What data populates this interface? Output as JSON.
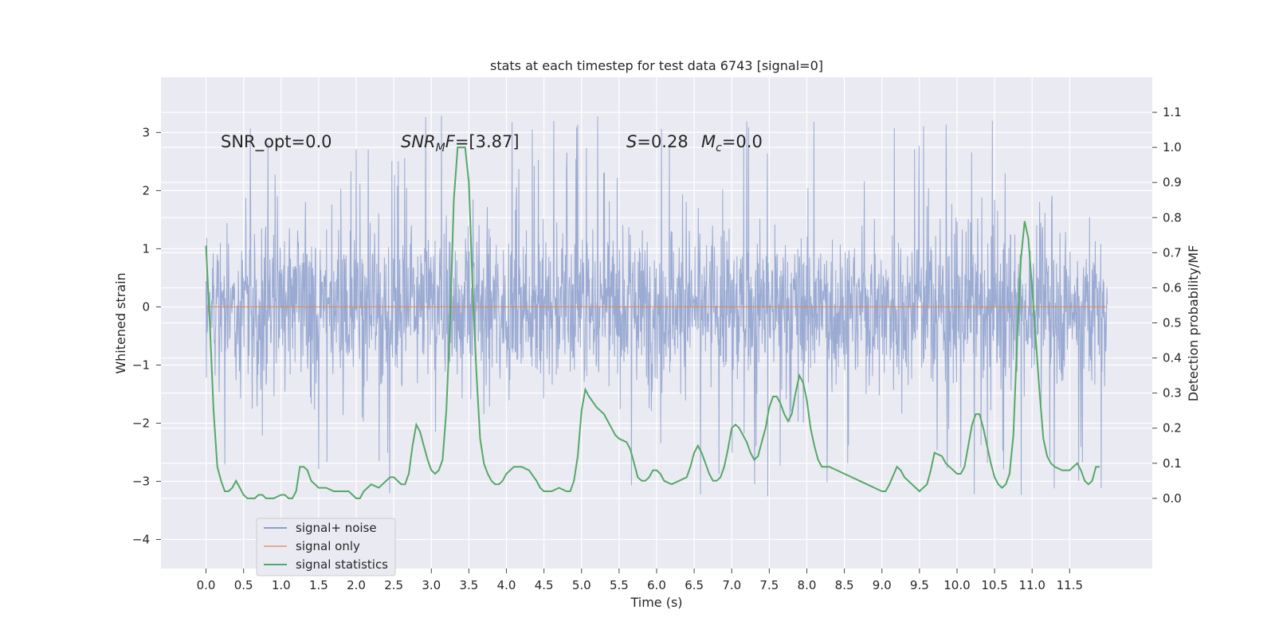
{
  "chart_data": {
    "type": "line",
    "title": "stats at each timestep for test data 6743 [signal=0]",
    "xlabel": "Time (s)",
    "ylabel": "Whitened strain",
    "ylabel_right": "Detection probability/MF",
    "xlim": [
      -0.6,
      12.6
    ],
    "ylim": [
      -4.5,
      3.95
    ],
    "ylim_right": [
      -0.2,
      1.2
    ],
    "xticks": [
      "0.0",
      "0.5",
      "1.0",
      "1.5",
      "2.0",
      "2.5",
      "3.0",
      "3.5",
      "4.0",
      "4.5",
      "5.0",
      "5.5",
      "6.0",
      "6.5",
      "7.0",
      "7.5",
      "8.0",
      "8.5",
      "9.0",
      "9.5",
      "10.0",
      "10.5",
      "11.0",
      "11.5"
    ],
    "yticks_left": [
      "3",
      "2",
      "1",
      "0",
      "−1",
      "−2",
      "−3",
      "−4"
    ],
    "yticks_right": [
      "1.1",
      "1.0",
      "0.9",
      "0.8",
      "0.7",
      "0.6",
      "0.5",
      "0.4",
      "0.3",
      "0.2",
      "0.1",
      "0.0"
    ],
    "grid": true,
    "background": "#eaeaf2",
    "annotations": {
      "snr_opt": "SNR_opt=0.0",
      "snr_mf": "=[3.87]",
      "s": "=0.28",
      "mc": "=0.0"
    },
    "legend": {
      "position": "lower-left",
      "entries": [
        "signal+ noise",
        "signal only",
        "signal statistics"
      ]
    },
    "series": [
      {
        "name": "signal+ noise",
        "axis": "left",
        "color": "#8c9fcd",
        "style": "noise band",
        "x_range": [
          0.0,
          12.0
        ],
        "band_envelope_upper": 1.6,
        "band_envelope_lower": -1.2,
        "spike_max": 3.6,
        "spike_min": -4.1
      },
      {
        "name": "signal only",
        "axis": "left",
        "color": "#dd8452",
        "x_range": [
          0.0,
          12.0
        ],
        "values": 0
      },
      {
        "name": "signal statistics",
        "axis": "right",
        "color": "#55a868",
        "points": [
          [
            0.0,
            0.72
          ],
          [
            0.05,
            0.5
          ],
          [
            0.1,
            0.25
          ],
          [
            0.15,
            0.09
          ],
          [
            0.2,
            0.05
          ],
          [
            0.25,
            0.02
          ],
          [
            0.3,
            0.02
          ],
          [
            0.35,
            0.03
          ],
          [
            0.4,
            0.05
          ],
          [
            0.45,
            0.03
          ],
          [
            0.5,
            0.01
          ],
          [
            0.55,
            0.0
          ],
          [
            0.6,
            0.0
          ],
          [
            0.65,
            0.0
          ],
          [
            0.7,
            0.01
          ],
          [
            0.75,
            0.01
          ],
          [
            0.8,
            0.0
          ],
          [
            0.9,
            0.0
          ],
          [
            1.0,
            0.01
          ],
          [
            1.05,
            0.01
          ],
          [
            1.1,
            0.0
          ],
          [
            1.15,
            0.0
          ],
          [
            1.2,
            0.02
          ],
          [
            1.25,
            0.09
          ],
          [
            1.3,
            0.09
          ],
          [
            1.35,
            0.08
          ],
          [
            1.4,
            0.05
          ],
          [
            1.5,
            0.03
          ],
          [
            1.6,
            0.03
          ],
          [
            1.7,
            0.02
          ],
          [
            1.8,
            0.02
          ],
          [
            1.9,
            0.02
          ],
          [
            2.0,
            0.0
          ],
          [
            2.05,
            0.0
          ],
          [
            2.1,
            0.02
          ],
          [
            2.2,
            0.04
          ],
          [
            2.3,
            0.03
          ],
          [
            2.4,
            0.05
          ],
          [
            2.45,
            0.06
          ],
          [
            2.5,
            0.06
          ],
          [
            2.6,
            0.04
          ],
          [
            2.65,
            0.04
          ],
          [
            2.7,
            0.07
          ],
          [
            2.75,
            0.15
          ],
          [
            2.8,
            0.21
          ],
          [
            2.85,
            0.19
          ],
          [
            2.9,
            0.15
          ],
          [
            2.95,
            0.11
          ],
          [
            3.0,
            0.08
          ],
          [
            3.05,
            0.07
          ],
          [
            3.1,
            0.08
          ],
          [
            3.15,
            0.11
          ],
          [
            3.2,
            0.25
          ],
          [
            3.25,
            0.5
          ],
          [
            3.3,
            0.85
          ],
          [
            3.35,
            1.0
          ],
          [
            3.45,
            1.0
          ],
          [
            3.5,
            0.9
          ],
          [
            3.55,
            0.6
          ],
          [
            3.6,
            0.36
          ],
          [
            3.65,
            0.17
          ],
          [
            3.7,
            0.1
          ],
          [
            3.75,
            0.07
          ],
          [
            3.8,
            0.05
          ],
          [
            3.85,
            0.04
          ],
          [
            3.9,
            0.04
          ],
          [
            3.95,
            0.05
          ],
          [
            4.0,
            0.07
          ],
          [
            4.05,
            0.08
          ],
          [
            4.1,
            0.09
          ],
          [
            4.2,
            0.09
          ],
          [
            4.3,
            0.08
          ],
          [
            4.4,
            0.05
          ],
          [
            4.45,
            0.03
          ],
          [
            4.5,
            0.02
          ],
          [
            4.6,
            0.02
          ],
          [
            4.7,
            0.03
          ],
          [
            4.8,
            0.02
          ],
          [
            4.85,
            0.02
          ],
          [
            4.9,
            0.05
          ],
          [
            4.95,
            0.12
          ],
          [
            5.0,
            0.25
          ],
          [
            5.05,
            0.31
          ],
          [
            5.1,
            0.29
          ],
          [
            5.2,
            0.26
          ],
          [
            5.3,
            0.24
          ],
          [
            5.35,
            0.22
          ],
          [
            5.4,
            0.2
          ],
          [
            5.45,
            0.18
          ],
          [
            5.5,
            0.17
          ],
          [
            5.6,
            0.16
          ],
          [
            5.65,
            0.14
          ],
          [
            5.7,
            0.1
          ],
          [
            5.75,
            0.06
          ],
          [
            5.8,
            0.05
          ],
          [
            5.85,
            0.05
          ],
          [
            5.9,
            0.06
          ],
          [
            5.95,
            0.08
          ],
          [
            6.0,
            0.08
          ],
          [
            6.05,
            0.07
          ],
          [
            6.1,
            0.05
          ],
          [
            6.2,
            0.04
          ],
          [
            6.3,
            0.05
          ],
          [
            6.4,
            0.06
          ],
          [
            6.45,
            0.09
          ],
          [
            6.5,
            0.13
          ],
          [
            6.55,
            0.15
          ],
          [
            6.6,
            0.13
          ],
          [
            6.65,
            0.1
          ],
          [
            6.7,
            0.07
          ],
          [
            6.75,
            0.05
          ],
          [
            6.8,
            0.05
          ],
          [
            6.85,
            0.06
          ],
          [
            6.9,
            0.09
          ],
          [
            6.95,
            0.14
          ],
          [
            7.0,
            0.2
          ],
          [
            7.05,
            0.21
          ],
          [
            7.1,
            0.2
          ],
          [
            7.2,
            0.16
          ],
          [
            7.25,
            0.13
          ],
          [
            7.3,
            0.11
          ],
          [
            7.35,
            0.12
          ],
          [
            7.4,
            0.16
          ],
          [
            7.45,
            0.2
          ],
          [
            7.5,
            0.26
          ],
          [
            7.55,
            0.29
          ],
          [
            7.6,
            0.29
          ],
          [
            7.65,
            0.27
          ],
          [
            7.7,
            0.24
          ],
          [
            7.75,
            0.22
          ],
          [
            7.8,
            0.24
          ],
          [
            7.85,
            0.3
          ],
          [
            7.9,
            0.35
          ],
          [
            7.95,
            0.33
          ],
          [
            8.0,
            0.28
          ],
          [
            8.05,
            0.2
          ],
          [
            8.1,
            0.15
          ],
          [
            8.15,
            0.11
          ],
          [
            8.2,
            0.09
          ],
          [
            8.3,
            0.09
          ],
          [
            8.4,
            0.08
          ],
          [
            8.5,
            0.07
          ],
          [
            8.6,
            0.06
          ],
          [
            8.7,
            0.05
          ],
          [
            8.8,
            0.04
          ],
          [
            8.9,
            0.03
          ],
          [
            9.0,
            0.02
          ],
          [
            9.05,
            0.02
          ],
          [
            9.1,
            0.04
          ],
          [
            9.2,
            0.09
          ],
          [
            9.25,
            0.08
          ],
          [
            9.3,
            0.06
          ],
          [
            9.4,
            0.04
          ],
          [
            9.45,
            0.03
          ],
          [
            9.5,
            0.02
          ],
          [
            9.6,
            0.04
          ],
          [
            9.65,
            0.08
          ],
          [
            9.7,
            0.13
          ],
          [
            9.8,
            0.12
          ],
          [
            9.85,
            0.1
          ],
          [
            9.9,
            0.09
          ],
          [
            10.0,
            0.07
          ],
          [
            10.05,
            0.07
          ],
          [
            10.1,
            0.09
          ],
          [
            10.15,
            0.15
          ],
          [
            10.2,
            0.21
          ],
          [
            10.25,
            0.24
          ],
          [
            10.3,
            0.24
          ],
          [
            10.35,
            0.2
          ],
          [
            10.4,
            0.15
          ],
          [
            10.45,
            0.1
          ],
          [
            10.5,
            0.06
          ],
          [
            10.55,
            0.04
          ],
          [
            10.6,
            0.03
          ],
          [
            10.65,
            0.04
          ],
          [
            10.7,
            0.07
          ],
          [
            10.75,
            0.18
          ],
          [
            10.8,
            0.45
          ],
          [
            10.85,
            0.68
          ],
          [
            10.9,
            0.79
          ],
          [
            10.95,
            0.74
          ],
          [
            11.0,
            0.6
          ],
          [
            11.05,
            0.45
          ],
          [
            11.1,
            0.3
          ],
          [
            11.15,
            0.17
          ],
          [
            11.2,
            0.12
          ],
          [
            11.25,
            0.1
          ],
          [
            11.3,
            0.09
          ],
          [
            11.4,
            0.08
          ],
          [
            11.5,
            0.08
          ],
          [
            11.55,
            0.09
          ],
          [
            11.6,
            0.1
          ],
          [
            11.65,
            0.08
          ],
          [
            11.7,
            0.05
          ],
          [
            11.75,
            0.04
          ],
          [
            11.8,
            0.05
          ],
          [
            11.85,
            0.09
          ],
          [
            11.9,
            0.09
          ]
        ]
      }
    ]
  }
}
